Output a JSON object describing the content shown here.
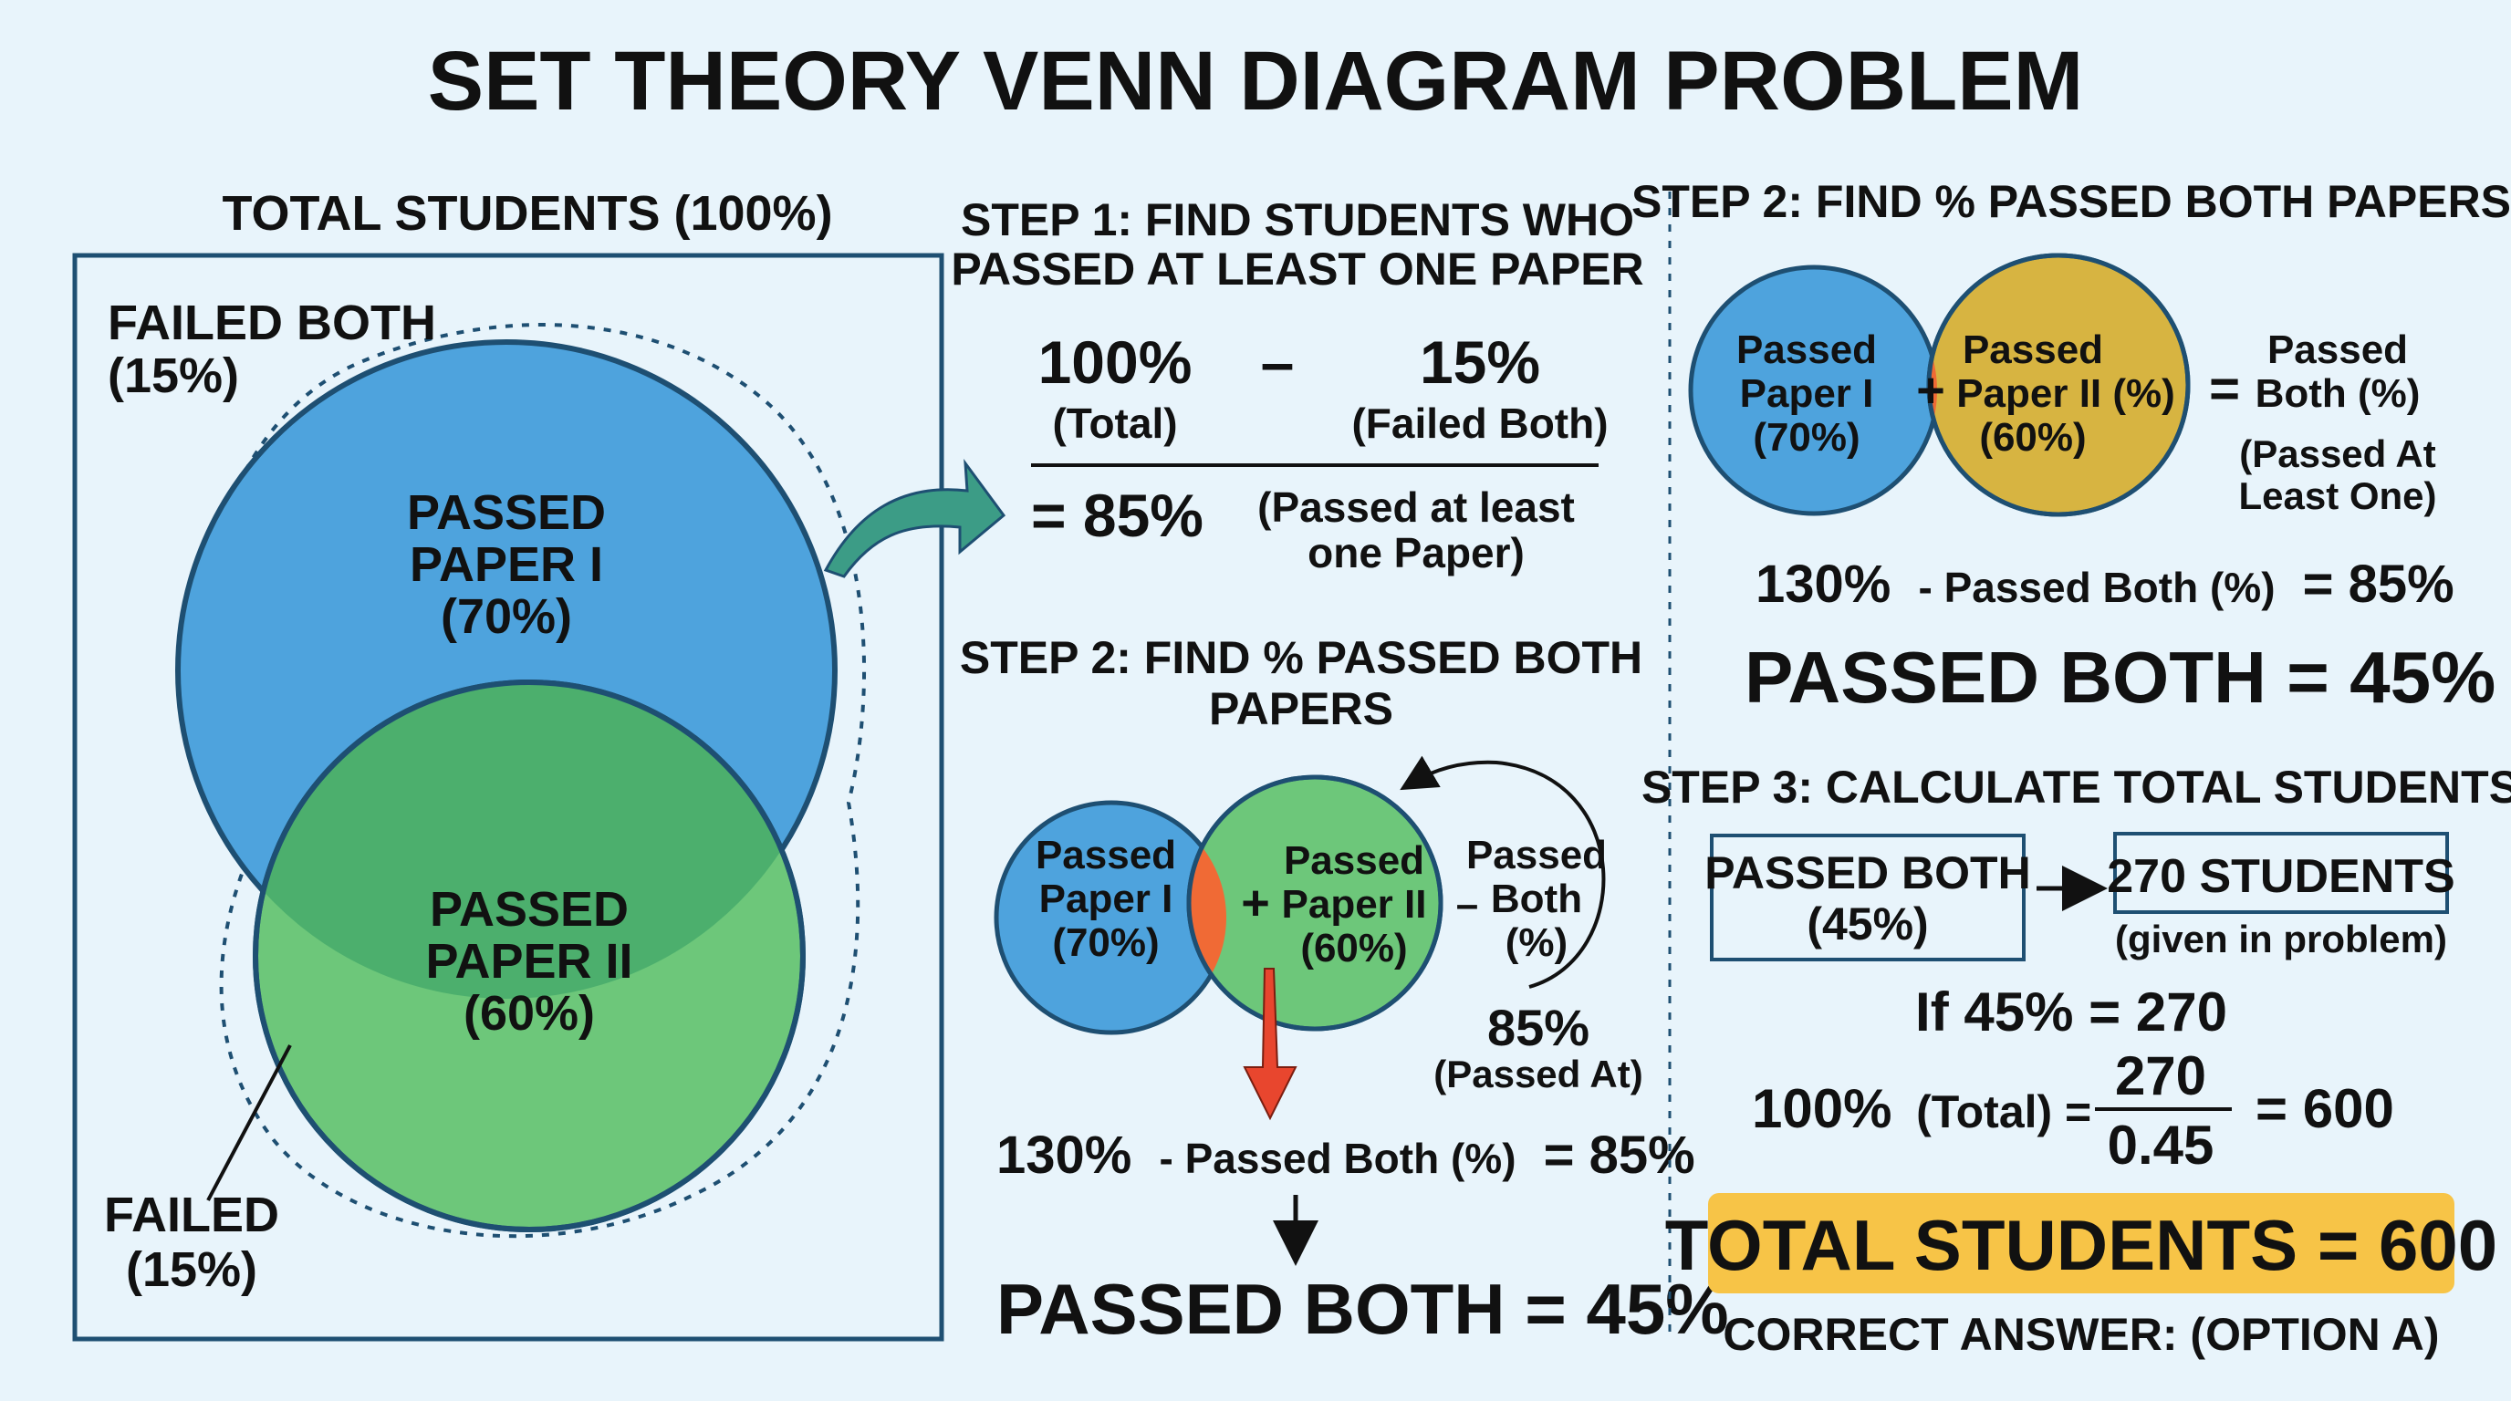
{
  "title": "SET THEORY VENN DIAGRAM PROBLEM",
  "colors": {
    "background": "#e8f4fb",
    "blue": "#4ea3dd",
    "green": "#6dc77a",
    "overlap_green": "#4caf6d",
    "orange": "#f06a35",
    "yellow": "#d7b441",
    "highlight": "#f7c447",
    "box_border": "#1e4f72",
    "arrow_teal": "#3c9c86",
    "arrow_red": "#e8462e"
  },
  "left_panel": {
    "header": "TOTAL STUDENTS (100%)",
    "failed_both_label": "FAILED BOTH",
    "failed_both_pct": "(15%)",
    "circle1_line1": "PASSED",
    "circle1_line2": "PAPER I",
    "circle1_line3": "(70%)",
    "circle2_line1": "PASSED",
    "circle2_line2": "PAPER II",
    "circle2_line3": "(60%)",
    "failed_label": "FAILED",
    "failed_pct": "(15%)"
  },
  "step1": {
    "title_line1": "STEP 1: FIND STUDENTS WHO",
    "title_line2": "PASSED AT LEAST ONE PAPER",
    "total_value": "100%",
    "total_caption": "(Total)",
    "minus": "–",
    "failed_value": "15%",
    "failed_caption": "(Failed Both)",
    "result": "= 85%",
    "result_caption_line1": "(Passed at least",
    "result_caption_line2": "one Paper)"
  },
  "step2_middle": {
    "title_line1": "STEP 2: FIND % PASSED BOTH",
    "title_line2": "PAPERS",
    "paper1_line1": "Passed",
    "paper1_line2": "Paper I",
    "paper1_line3": "(70%)",
    "plus": "+",
    "paper2_line1": "Passed",
    "paper2_line2": "Paper II",
    "paper2_line3": "(60%)",
    "minus": "–",
    "both_line1": "Passed",
    "both_line2": "Both",
    "both_line3": "(%)",
    "result_value": "85%",
    "result_caption": "(Passed At)",
    "equation_bold_left": "130%",
    "equation_mid": "- Passed Both (%)",
    "equation_bold_right": "= 85%",
    "down_arrow": "↓",
    "answer": "PASSED BOTH = 45%"
  },
  "step2_right": {
    "title": "STEP 2: FIND % PASSED BOTH PAPERS",
    "paper1_line1": "Passed",
    "paper1_line2": "Paper I",
    "paper1_line3": "(70%)",
    "plus": "+",
    "paper2_line1": "Passed",
    "paper2_line2": "Paper II (%)",
    "paper2_line3": "(60%)",
    "equals": "=",
    "both_line1": "Passed",
    "both_line2": "Both (%)",
    "both_line3": "(Passed At",
    "both_line4": "Least One)",
    "equation_bold_left": "130%",
    "equation_mid": "- Passed Both (%)",
    "equation_bold_right": "= 85%",
    "answer": "PASSED BOTH = 45%"
  },
  "step3": {
    "title": "STEP 3: CALCULATE TOTAL STUDENTS",
    "box1_line1": "PASSED BOTH",
    "box1_line2": "(45%)",
    "box2_text": "270 STUDENTS",
    "box2_caption": "(given in problem)",
    "if_line": "If 45% = 270",
    "total_bold": "100%",
    "total_caption": "(Total) =",
    "numerator": "270",
    "denominator": "0.45",
    "result": "= 600",
    "highlight_text": "TOTAL STUDENTS = 600",
    "correct_answer": "CORRECT ANSWER: (OPTION A)"
  }
}
